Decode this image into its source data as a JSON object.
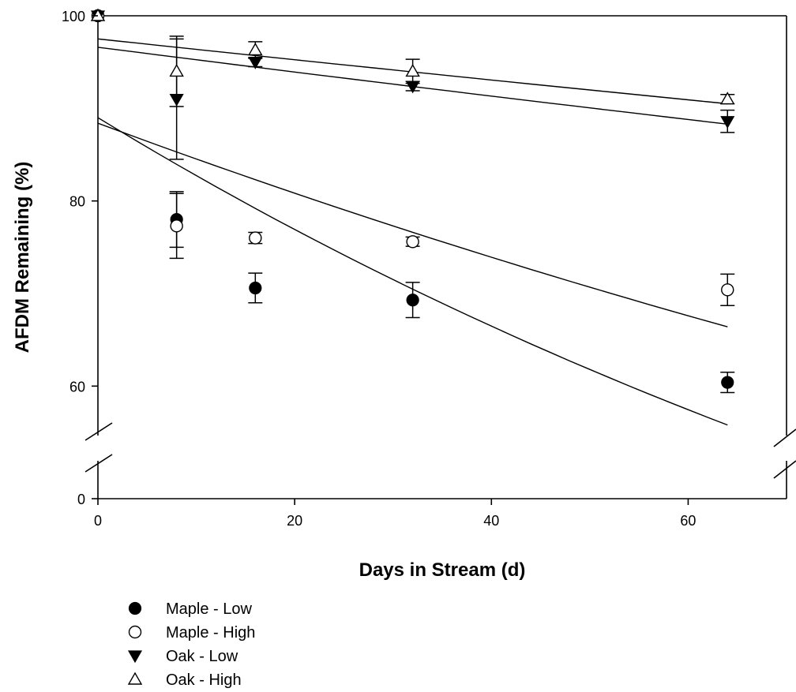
{
  "chart_data": {
    "type": "scatter",
    "title": "",
    "xlabel": "Days in Stream (d)",
    "ylabel": "AFDM Remaining (%)",
    "xlim": [
      0,
      70
    ],
    "y_axis_break": {
      "lower_segment": [
        0,
        0
      ],
      "upper_segment": [
        55,
        100
      ]
    },
    "x_ticks": [
      0,
      20,
      40,
      60
    ],
    "y_ticks": [
      0,
      60,
      80,
      100
    ],
    "grid": false,
    "legend_position": "bottom-left",
    "series": [
      {
        "name": "Maple - Low",
        "marker": "filled-circle",
        "points": [
          {
            "x": 0,
            "y": 100,
            "err": 0
          },
          {
            "x": 8,
            "y": 78,
            "err": 3
          },
          {
            "x": 16,
            "y": 70.6,
            "err": 1.6
          },
          {
            "x": 32,
            "y": 69.3,
            "err": 1.9
          },
          {
            "x": 64,
            "y": 60.4,
            "err": 1.1
          }
        ],
        "fit": {
          "y0": 89.0,
          "y64": 55.8
        }
      },
      {
        "name": "Maple - High",
        "marker": "open-circle",
        "points": [
          {
            "x": 0,
            "y": 100,
            "err": 0
          },
          {
            "x": 8,
            "y": 77.3,
            "err": 3.5
          },
          {
            "x": 16,
            "y": 76.0,
            "err": 0.6
          },
          {
            "x": 32,
            "y": 75.6,
            "err": 0.5
          },
          {
            "x": 64,
            "y": 70.4,
            "err": 1.7
          }
        ],
        "fit": {
          "y0": 88.4,
          "y64": 66.4
        }
      },
      {
        "name": "Oak - Low",
        "marker": "filled-triangle-down",
        "points": [
          {
            "x": 0,
            "y": 100,
            "err": 0
          },
          {
            "x": 8,
            "y": 91.0,
            "err": 6.5
          },
          {
            "x": 16,
            "y": 95.0,
            "err": 0.5
          },
          {
            "x": 32,
            "y": 92.4,
            "err": 0.5
          },
          {
            "x": 64,
            "y": 88.6,
            "err": 1.2
          }
        ],
        "fit": {
          "y0": 96.6,
          "y64": 88.3
        }
      },
      {
        "name": "Oak - High",
        "marker": "open-triangle-up",
        "points": [
          {
            "x": 0,
            "y": 100,
            "err": 0
          },
          {
            "x": 8,
            "y": 94.0,
            "err": 3.8
          },
          {
            "x": 16,
            "y": 96.3,
            "err": 0.9
          },
          {
            "x": 32,
            "y": 94.0,
            "err": 1.3
          },
          {
            "x": 64,
            "y": 91.0,
            "err": 0.5
          }
        ],
        "fit": {
          "y0": 97.5,
          "y64": 90.5
        }
      }
    ]
  }
}
